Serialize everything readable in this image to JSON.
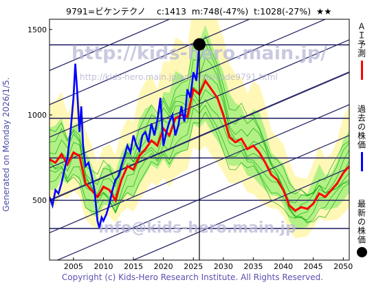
{
  "header": {
    "title": "9791=ビケンテクノ    c:1413  m:748(-47%)  t:1028(-27%)  ★★"
  },
  "side_note": "Generated on Monday 2026/1/5.",
  "watermarks": {
    "url_big": "http://kids-hero.main.jp/",
    "url_small": "http://kids-hero.main.jp/analysis/code9791.html",
    "email": "info@kids-hero.main.jp"
  },
  "legend": {
    "ai": "ＡＩ予測",
    "past": "過去の株価",
    "latest": "最新の株価"
  },
  "footer": "Copyright (c) Kids-Hero Research Institute. All Rights Reserved.",
  "colors": {
    "ai": "#ff0000",
    "past": "#0000ff",
    "band": "#00aa00",
    "bandFill": "#99ee77",
    "frame": "#1a1a5a"
  },
  "chart_data": {
    "type": "line",
    "xlim": [
      2001,
      2051
    ],
    "ylim": [
      150,
      1560
    ],
    "x_ticks": [
      2005,
      2010,
      2015,
      2020,
      2025,
      2030,
      2035,
      2040,
      2045,
      2050
    ],
    "y_ticks": [
      500,
      1000,
      1500
    ],
    "h_lines": [
      1410,
      980,
      748,
      500,
      335
    ],
    "vline_x": 2026.0,
    "latest": {
      "x": 2026.0,
      "y": 1413
    },
    "series": [
      {
        "name": "過去の株価",
        "x": [
          2001,
          2001.5,
          2002,
          2002.5,
          2003,
          2003.5,
          2004,
          2004.5,
          2005,
          2005.3,
          2005.6,
          2006,
          2006.3,
          2006.6,
          2007,
          2007.5,
          2008,
          2008.5,
          2009,
          2009.3,
          2009.7,
          2010,
          2010.5,
          2011,
          2011.5,
          2012,
          2012.5,
          2013,
          2013.5,
          2014,
          2014.5,
          2015,
          2015.5,
          2016,
          2016.5,
          2017,
          2017.5,
          2018,
          2018.5,
          2019,
          2019.5,
          2020,
          2020.5,
          2021,
          2021.5,
          2022,
          2022.5,
          2023,
          2023.5,
          2024,
          2024.5,
          2025,
          2025.5,
          2026.0
        ],
        "y": [
          520,
          470,
          560,
          540,
          600,
          680,
          750,
          900,
          1100,
          1300,
          1150,
          900,
          1050,
          820,
          700,
          720,
          650,
          560,
          380,
          340,
          400,
          380,
          420,
          480,
          560,
          620,
          640,
          700,
          760,
          820,
          780,
          880,
          820,
          790,
          880,
          900,
          840,
          950,
          880,
          970,
          1100,
          820,
          900,
          960,
          1000,
          880,
          940,
          1050,
          960,
          1150,
          1100,
          1250,
          1200,
          1413
        ]
      },
      {
        "name": "ＡＩ予測",
        "x": [
          2001,
          2002,
          2003,
          2004,
          2005,
          2006,
          2007,
          2008,
          2009,
          2010,
          2011,
          2012,
          2013,
          2014,
          2015,
          2016,
          2017,
          2018,
          2019,
          2020,
          2021,
          2022,
          2023,
          2024,
          2025,
          2026,
          2027,
          2028,
          2029,
          2030,
          2031,
          2032,
          2033,
          2034,
          2035,
          2036,
          2037,
          2038,
          2039,
          2040,
          2041,
          2042,
          2043,
          2044,
          2045,
          2046,
          2047,
          2048,
          2049,
          2050,
          2051
        ],
        "y": [
          740,
          720,
          770,
          710,
          780,
          760,
          600,
          560,
          520,
          580,
          560,
          500,
          620,
          700,
          680,
          760,
          800,
          850,
          820,
          920,
          880,
          980,
          1000,
          990,
          1150,
          1120,
          1200,
          1150,
          1100,
          1000,
          870,
          840,
          860,
          800,
          820,
          780,
          720,
          650,
          620,
          560,
          470,
          440,
          460,
          450,
          480,
          540,
          520,
          560,
          600,
          660,
          700
        ]
      }
    ]
  }
}
